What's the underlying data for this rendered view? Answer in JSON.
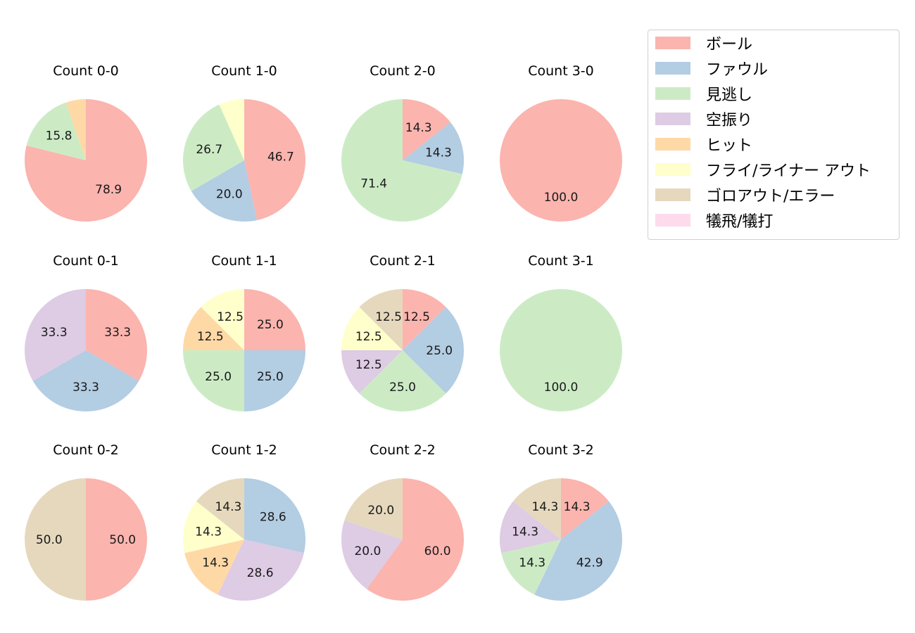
{
  "legend": {
    "items": [
      {
        "label": "ボール",
        "color": "#fbb4ae"
      },
      {
        "label": "ファウル",
        "color": "#b3cde3"
      },
      {
        "label": "見逃し",
        "color": "#ccebc5"
      },
      {
        "label": "空振り",
        "color": "#decbe4"
      },
      {
        "label": "ヒット",
        "color": "#fed9a6"
      },
      {
        "label": "フライ/ライナー アウト",
        "color": "#ffffcc"
      },
      {
        "label": "ゴロアウト/エラー",
        "color": "#e5d8bd"
      },
      {
        "label": "犠飛/犠打",
        "color": "#fddaec"
      }
    ]
  },
  "chart_data": [
    {
      "type": "pie",
      "title": "Count 0-0",
      "slices": [
        {
          "category": "ボール",
          "value": 78.9
        },
        {
          "category": "見逃し",
          "value": 15.8
        },
        {
          "category": "ヒット",
          "value": 5.3
        }
      ]
    },
    {
      "type": "pie",
      "title": "Count 1-0",
      "slices": [
        {
          "category": "ボール",
          "value": 46.7
        },
        {
          "category": "ファウル",
          "value": 20.0
        },
        {
          "category": "見逃し",
          "value": 26.7
        },
        {
          "category": "フライ/ライナー アウト",
          "value": 6.7
        }
      ]
    },
    {
      "type": "pie",
      "title": "Count 2-0",
      "slices": [
        {
          "category": "ボール",
          "value": 14.3
        },
        {
          "category": "ファウル",
          "value": 14.3
        },
        {
          "category": "見逃し",
          "value": 71.4
        }
      ]
    },
    {
      "type": "pie",
      "title": "Count 3-0",
      "slices": [
        {
          "category": "ボール",
          "value": 100.0
        }
      ]
    },
    {
      "type": "pie",
      "title": "Count 0-1",
      "slices": [
        {
          "category": "ボール",
          "value": 33.3
        },
        {
          "category": "ファウル",
          "value": 33.3
        },
        {
          "category": "空振り",
          "value": 33.3
        }
      ]
    },
    {
      "type": "pie",
      "title": "Count 1-1",
      "slices": [
        {
          "category": "ボール",
          "value": 25.0
        },
        {
          "category": "ファウル",
          "value": 25.0
        },
        {
          "category": "見逃し",
          "value": 25.0
        },
        {
          "category": "ヒット",
          "value": 12.5
        },
        {
          "category": "フライ/ライナー アウト",
          "value": 12.5
        }
      ]
    },
    {
      "type": "pie",
      "title": "Count 2-1",
      "slices": [
        {
          "category": "ボール",
          "value": 12.5
        },
        {
          "category": "ファウル",
          "value": 25.0
        },
        {
          "category": "見逃し",
          "value": 25.0
        },
        {
          "category": "空振り",
          "value": 12.5
        },
        {
          "category": "フライ/ライナー アウト",
          "value": 12.5
        },
        {
          "category": "ゴロアウト/エラー",
          "value": 12.5
        }
      ]
    },
    {
      "type": "pie",
      "title": "Count 3-1",
      "slices": [
        {
          "category": "見逃し",
          "value": 100.0
        }
      ]
    },
    {
      "type": "pie",
      "title": "Count 0-2",
      "slices": [
        {
          "category": "ボール",
          "value": 50.0
        },
        {
          "category": "ゴロアウト/エラー",
          "value": 50.0
        }
      ]
    },
    {
      "type": "pie",
      "title": "Count 1-2",
      "slices": [
        {
          "category": "ファウル",
          "value": 28.6
        },
        {
          "category": "空振り",
          "value": 28.6
        },
        {
          "category": "ヒット",
          "value": 14.3
        },
        {
          "category": "フライ/ライナー アウト",
          "value": 14.3
        },
        {
          "category": "ゴロアウト/エラー",
          "value": 14.3
        }
      ]
    },
    {
      "type": "pie",
      "title": "Count 2-2",
      "slices": [
        {
          "category": "ボール",
          "value": 60.0
        },
        {
          "category": "空振り",
          "value": 20.0
        },
        {
          "category": "ゴロアウト/エラー",
          "value": 20.0
        }
      ]
    },
    {
      "type": "pie",
      "title": "Count 3-2",
      "slices": [
        {
          "category": "ボール",
          "value": 14.3
        },
        {
          "category": "ファウル",
          "value": 42.9
        },
        {
          "category": "見逃し",
          "value": 14.3
        },
        {
          "category": "空振り",
          "value": 14.3
        },
        {
          "category": "ゴロアウト/エラー",
          "value": 14.3
        }
      ]
    }
  ]
}
